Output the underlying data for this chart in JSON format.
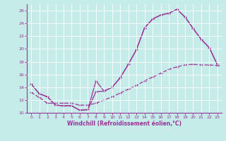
{
  "xlabel": "Windchill (Refroidissement éolien,°C)",
  "bg_color": "#c5ece8",
  "line_color": "#993399",
  "grid_color": "#b0d8d4",
  "xlim": [
    -0.5,
    23.5
  ],
  "ylim": [
    10,
    27
  ],
  "xticks": [
    0,
    1,
    2,
    3,
    4,
    5,
    6,
    7,
    8,
    9,
    10,
    11,
    12,
    13,
    14,
    15,
    16,
    17,
    18,
    19,
    20,
    21,
    22,
    23
  ],
  "yticks": [
    10,
    12,
    14,
    16,
    18,
    20,
    22,
    24,
    26
  ],
  "line1_x": [
    0,
    1,
    2,
    3,
    4,
    5,
    6,
    7,
    8,
    9,
    10,
    11,
    12,
    13,
    14,
    15,
    16,
    17,
    18,
    19,
    20,
    21,
    22,
    23
  ],
  "line1_y": [
    14.5,
    13.0,
    12.5,
    11.2,
    11.1,
    11.1,
    10.4,
    10.5,
    15.0,
    13.4,
    14.0,
    15.5,
    17.6,
    19.9,
    23.3,
    24.7,
    25.3,
    25.6,
    26.2,
    25.0,
    23.2,
    21.5,
    20.2,
    17.5
  ],
  "line2_x": [
    0,
    1,
    2,
    3,
    4,
    5,
    6,
    7,
    8,
    9,
    10,
    11,
    12,
    13,
    14,
    15,
    16,
    17,
    18,
    19,
    20,
    21,
    22,
    23
  ],
  "line2_y": [
    14.5,
    13.0,
    12.5,
    11.2,
    11.1,
    11.1,
    10.4,
    10.5,
    13.3,
    13.4,
    14.0,
    15.5,
    17.6,
    19.9,
    23.3,
    24.7,
    25.3,
    25.6,
    26.2,
    25.0,
    23.2,
    21.5,
    20.2,
    17.5
  ],
  "line3_x": [
    0,
    1,
    2,
    3,
    4,
    5,
    6,
    7,
    8,
    9,
    10,
    11,
    12,
    13,
    14,
    15,
    16,
    17,
    18,
    19,
    20,
    21,
    22,
    23
  ],
  "line3_y": [
    13.2,
    12.4,
    11.5,
    11.5,
    11.5,
    11.5,
    11.2,
    11.2,
    11.5,
    12.0,
    12.5,
    13.1,
    13.7,
    14.3,
    15.0,
    15.6,
    16.2,
    16.8,
    17.2,
    17.5,
    17.6,
    17.5,
    17.5,
    17.4
  ]
}
